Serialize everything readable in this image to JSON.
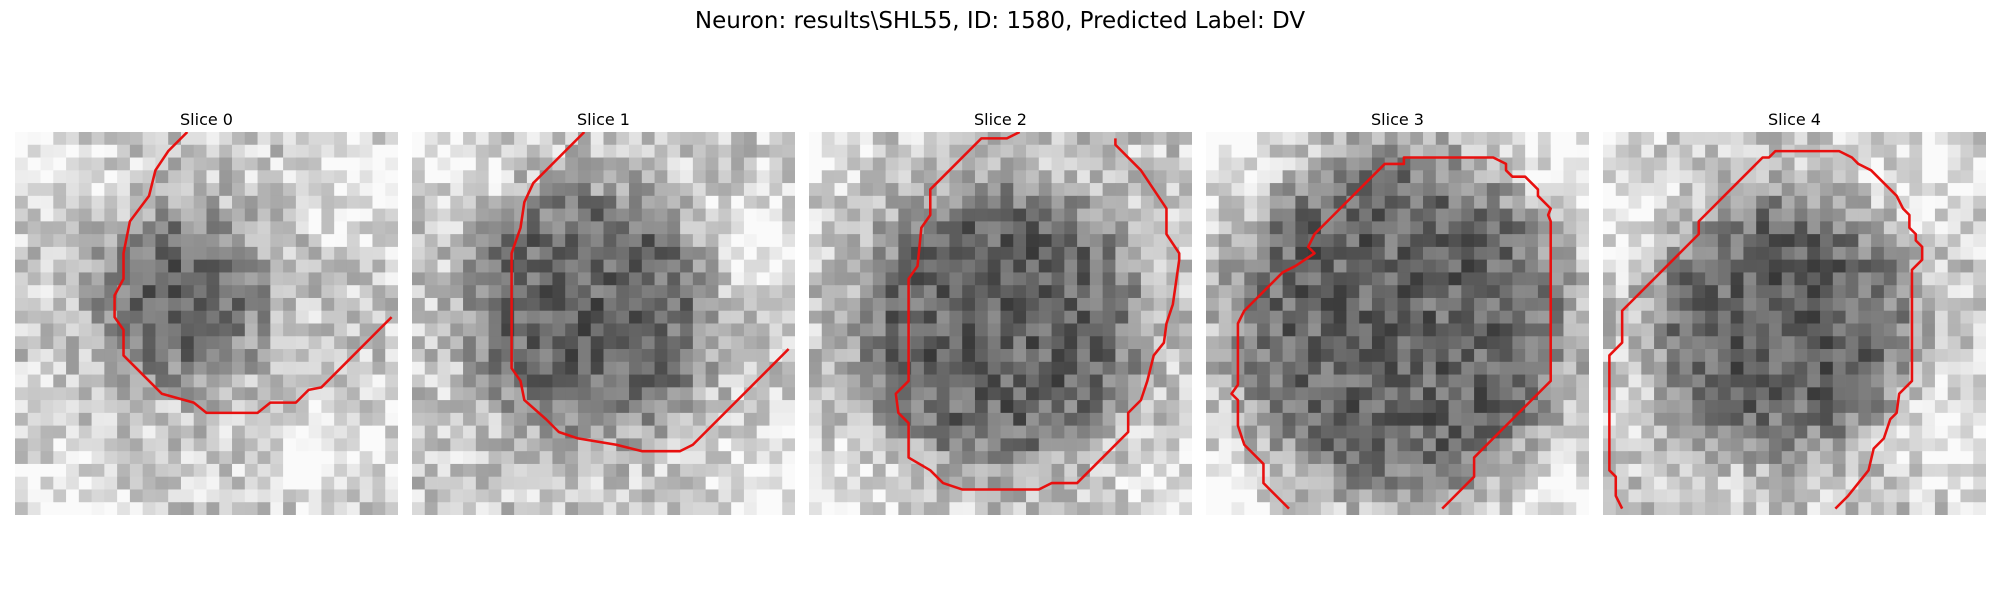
{
  "figure": {
    "title": "Neuron: results\\SHL55, ID: 1580, Predicted Label: DV"
  },
  "panels": [
    {
      "title": "Slice 0",
      "dark_center": [
        13,
        13
      ],
      "dark_radius": 6.5,
      "light_regions": [
        [
          2,
          2
        ],
        [
          27,
          4
        ],
        [
          4,
          29
        ],
        [
          25,
          25
        ]
      ],
      "contour": [
        [
          13.5,
          0
        ],
        [
          12,
          1.5
        ],
        [
          11,
          3
        ],
        [
          10.5,
          5
        ],
        [
          9,
          7
        ],
        [
          8.5,
          9.5
        ],
        [
          8.5,
          11.5
        ],
        [
          7.8,
          12.8
        ],
        [
          7.8,
          14.5
        ],
        [
          8.5,
          15.5
        ],
        [
          8.5,
          17.5
        ],
        [
          9.5,
          18.5
        ],
        [
          11.5,
          20.5
        ],
        [
          14,
          21.2
        ],
        [
          15,
          22
        ],
        [
          19,
          22
        ],
        [
          20,
          21.2
        ],
        [
          22,
          21.2
        ],
        [
          23,
          20.2
        ],
        [
          24,
          20
        ],
        [
          26,
          18
        ],
        [
          28,
          16
        ],
        [
          29,
          15
        ],
        [
          29.5,
          14.5
        ]
      ]
    },
    {
      "title": "Slice 1",
      "dark_center": [
        14,
        14
      ],
      "dark_radius": 9.5,
      "light_regions": [
        [
          3,
          1
        ],
        [
          27,
          9
        ],
        [
          28,
          27
        ]
      ],
      "contour": [
        [
          13.5,
          0
        ],
        [
          12,
          1.5
        ],
        [
          10.5,
          3
        ],
        [
          9.5,
          4
        ],
        [
          8.8,
          5.5
        ],
        [
          8.5,
          7.5
        ],
        [
          7.8,
          9.5
        ],
        [
          7.8,
          18.5
        ],
        [
          8.5,
          19.5
        ],
        [
          8.8,
          21
        ],
        [
          10.5,
          22.5
        ],
        [
          11.5,
          23.5
        ],
        [
          13,
          24
        ],
        [
          16,
          24.5
        ],
        [
          18,
          25
        ],
        [
          21,
          25
        ],
        [
          22,
          24.5
        ],
        [
          24,
          22.5
        ],
        [
          26,
          20.5
        ],
        [
          28,
          18.5
        ],
        [
          29.5,
          17
        ]
      ]
    },
    {
      "title": "Slice 2",
      "dark_center": [
        15,
        15
      ],
      "dark_radius": 11,
      "light_regions": [
        [
          1,
          1
        ],
        [
          29,
          29
        ],
        [
          1,
          29
        ]
      ],
      "contour": [
        [
          16.5,
          0
        ],
        [
          15.5,
          0.5
        ],
        [
          13.5,
          0.5
        ],
        [
          11.5,
          2.5
        ],
        [
          10.5,
          3.5
        ],
        [
          9.5,
          4.5
        ],
        [
          9.5,
          6.5
        ],
        [
          8.8,
          7.5
        ],
        [
          8.5,
          10.5
        ],
        [
          7.8,
          11.5
        ],
        [
          7.8,
          19.5
        ],
        [
          6.8,
          20.5
        ],
        [
          7,
          22
        ],
        [
          7.8,
          22.8
        ],
        [
          7.8,
          25.5
        ],
        [
          9.5,
          26.5
        ],
        [
          10.5,
          27.5
        ],
        [
          12,
          28
        ],
        [
          18,
          28
        ],
        [
          19,
          27.5
        ],
        [
          21,
          27.5
        ],
        [
          22,
          26.5
        ],
        [
          23,
          25.5
        ],
        [
          25,
          23.5
        ],
        [
          25,
          22
        ],
        [
          26,
          21
        ],
        [
          26.5,
          19.5
        ],
        [
          27,
          17.5
        ],
        [
          27.8,
          16.5
        ],
        [
          28,
          15
        ],
        [
          28.5,
          13.5
        ],
        [
          29,
          10
        ],
        [
          29,
          9.5
        ],
        [
          28,
          8
        ],
        [
          28,
          6
        ],
        [
          27,
          4.5
        ],
        [
          26,
          3
        ],
        [
          24,
          1
        ],
        [
          24,
          0.5
        ]
      ]
    },
    {
      "title": "Slice 3",
      "dark_center": [
        15,
        15
      ],
      "dark_radius": 13,
      "light_regions": [
        [
          1,
          2
        ],
        [
          29,
          2
        ],
        [
          1,
          29
        ],
        [
          29,
          29
        ]
      ],
      "contour": [
        [
          6.5,
          29.5
        ],
        [
          5,
          28
        ],
        [
          4.5,
          27.5
        ],
        [
          4.5,
          26
        ],
        [
          3,
          24.5
        ],
        [
          2.5,
          23
        ],
        [
          2.5,
          21
        ],
        [
          2,
          20.5
        ],
        [
          2.5,
          19.8
        ],
        [
          2.5,
          17
        ],
        [
          2.5,
          15
        ],
        [
          3,
          14
        ],
        [
          4,
          13
        ],
        [
          5,
          12
        ],
        [
          6,
          11
        ],
        [
          7,
          10.5
        ],
        [
          8.5,
          9.5
        ],
        [
          8,
          9
        ],
        [
          8.5,
          8
        ],
        [
          9.5,
          7
        ],
        [
          11,
          5.5
        ],
        [
          12.5,
          4
        ],
        [
          13.5,
          3
        ],
        [
          14,
          2.5
        ],
        [
          14,
          2.5
        ],
        [
          15.5,
          2.5
        ],
        [
          15.5,
          2
        ],
        [
          22.5,
          2
        ],
        [
          23.5,
          2.5
        ],
        [
          23.5,
          3
        ],
        [
          24,
          3.5
        ],
        [
          25,
          3.5
        ],
        [
          26,
          4.5
        ],
        [
          26,
          5
        ],
        [
          27,
          6
        ],
        [
          26.8,
          6.5
        ],
        [
          27,
          7
        ],
        [
          27,
          19.5
        ],
        [
          25,
          21.5
        ],
        [
          23.5,
          23
        ],
        [
          22,
          24.5
        ],
        [
          21,
          25.5
        ],
        [
          21,
          27
        ],
        [
          19.5,
          28.5
        ],
        [
          18.5,
          29.5
        ]
      ]
    },
    {
      "title": "Slice 4",
      "dark_center": [
        14,
        15
      ],
      "dark_radius": 10,
      "light_regions": [
        [
          2,
          6
        ],
        [
          28,
          24
        ],
        [
          26,
          3
        ]
      ],
      "contour": [
        [
          1.5,
          29.5
        ],
        [
          1,
          28.5
        ],
        [
          1,
          27
        ],
        [
          0.5,
          26.5
        ],
        [
          0.5,
          17.5
        ],
        [
          1.5,
          16.5
        ],
        [
          1.5,
          14
        ],
        [
          2.5,
          13
        ],
        [
          3.5,
          12
        ],
        [
          4.5,
          11
        ],
        [
          5.5,
          10
        ],
        [
          6.5,
          9
        ],
        [
          7.5,
          8
        ],
        [
          7.5,
          7
        ],
        [
          8.5,
          6
        ],
        [
          9.5,
          5
        ],
        [
          10.5,
          4
        ],
        [
          11.5,
          3
        ],
        [
          12.5,
          2
        ],
        [
          13,
          2
        ],
        [
          13.5,
          1.5
        ],
        [
          18.5,
          1.5
        ],
        [
          19.5,
          2
        ],
        [
          20,
          2.5
        ],
        [
          21,
          3
        ],
        [
          22,
          4
        ],
        [
          23,
          5
        ],
        [
          23.5,
          6
        ],
        [
          24,
          6.5
        ],
        [
          24,
          7.5
        ],
        [
          24.5,
          8
        ],
        [
          24.5,
          8.5
        ],
        [
          25,
          9
        ],
        [
          25,
          10
        ],
        [
          24.2,
          10.8
        ],
        [
          24.2,
          14
        ],
        [
          24.2,
          15
        ],
        [
          24.2,
          17
        ],
        [
          24.2,
          19.5
        ],
        [
          23.2,
          20.5
        ],
        [
          23,
          22
        ],
        [
          22.5,
          22.5
        ],
        [
          22,
          24
        ],
        [
          21.2,
          24.8
        ],
        [
          20.8,
          26.5
        ],
        [
          20,
          27.5
        ],
        [
          19.2,
          28.5
        ],
        [
          18.2,
          29.5
        ]
      ]
    }
  ]
}
